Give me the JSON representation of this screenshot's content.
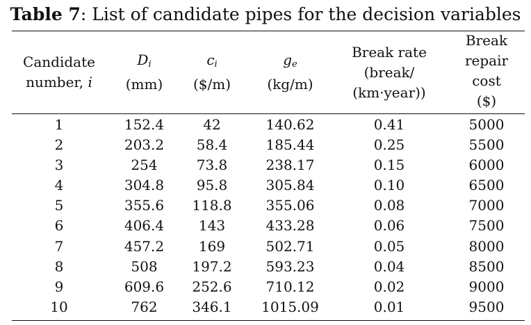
{
  "caption": {
    "label": "Table 7",
    "text": ": List of candidate pipes for the decision variables"
  },
  "headers": {
    "candidate_line1": "Candidate",
    "candidate_line2": "number, ",
    "candidate_var": "i",
    "diam_symbol": "D",
    "diam_sub": "i",
    "diam_unit": "(mm)",
    "cost_symbol": "c",
    "cost_sub": "i",
    "cost_unit": "($/m)",
    "weight_symbol": "g",
    "weight_sub": "e",
    "weight_unit": "(kg/m)",
    "break_line1": "Break rate",
    "break_line2": "(break/",
    "break_line3": "(km·year))",
    "repair_line1": "Break",
    "repair_line2": "repair",
    "repair_line3": "cost",
    "repair_line4": "($)"
  },
  "rows": [
    {
      "i": "1",
      "d": "152.4",
      "c": "42",
      "g": "140.62",
      "rate": "0.41",
      "cost": "5000"
    },
    {
      "i": "2",
      "d": "203.2",
      "c": "58.4",
      "g": "185.44",
      "rate": "0.25",
      "cost": "5500"
    },
    {
      "i": "3",
      "d": "254",
      "c": "73.8",
      "g": "238.17",
      "rate": "0.15",
      "cost": "6000"
    },
    {
      "i": "4",
      "d": "304.8",
      "c": "95.8",
      "g": "305.84",
      "rate": "0.10",
      "cost": "6500"
    },
    {
      "i": "5",
      "d": "355.6",
      "c": "118.8",
      "g": "355.06",
      "rate": "0.08",
      "cost": "7000"
    },
    {
      "i": "6",
      "d": "406.4",
      "c": "143",
      "g": "433.28",
      "rate": "0.06",
      "cost": "7500"
    },
    {
      "i": "7",
      "d": "457.2",
      "c": "169",
      "g": "502.71",
      "rate": "0.05",
      "cost": "8000"
    },
    {
      "i": "8",
      "d": "508",
      "c": "197.2",
      "g": "593.23",
      "rate": "0.04",
      "cost": "8500"
    },
    {
      "i": "9",
      "d": "609.6",
      "c": "252.6",
      "g": "710.12",
      "rate": "0.02",
      "cost": "9000"
    },
    {
      "i": "10",
      "d": "762",
      "c": "346.1",
      "g": "1015.09",
      "rate": "0.01",
      "cost": "9500"
    }
  ]
}
